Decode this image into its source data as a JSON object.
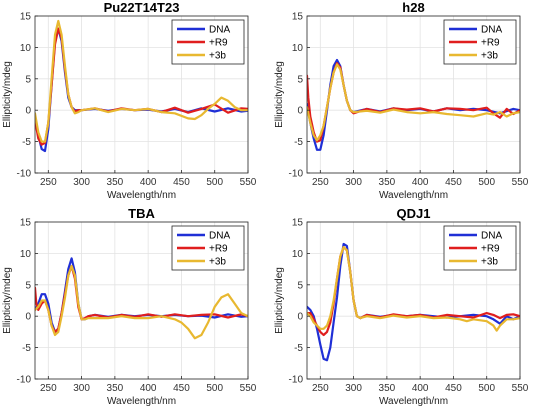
{
  "colors": {
    "DNA": "#1f2fd6",
    "+R9": "#e01e1e",
    "+3b": "#e8b830"
  },
  "chart_data": [
    {
      "type": "line",
      "title": "Pu22T14T23",
      "xlabel": "Wavelength/nm",
      "ylabel": "Ellipticity/mdeg",
      "xlim": [
        230,
        550
      ],
      "ylim": [
        -10,
        15
      ],
      "xticks": [
        250,
        300,
        350,
        400,
        450,
        500,
        550
      ],
      "yticks": [
        -10,
        -5,
        0,
        5,
        10,
        15
      ],
      "grid": true,
      "legend": "top-right",
      "series": [
        {
          "name": "DNA",
          "x": [
            230,
            235,
            240,
            245,
            250,
            255,
            260,
            265,
            270,
            275,
            280,
            285,
            290,
            295,
            300,
            320,
            340,
            360,
            380,
            400,
            420,
            440,
            460,
            480,
            500,
            520,
            540,
            550
          ],
          "y": [
            -1,
            -4,
            -6.2,
            -6.5,
            -3,
            4,
            11,
            13,
            11,
            6,
            2,
            0.5,
            0,
            0,
            0,
            0.2,
            -0.1,
            0.2,
            0,
            0.1,
            -0.2,
            0.2,
            -0.3,
            0.3,
            -0.2,
            0.3,
            -0.2,
            -0.1
          ]
        },
        {
          "name": "+R9",
          "x": [
            230,
            235,
            240,
            245,
            250,
            255,
            260,
            265,
            270,
            275,
            280,
            285,
            290,
            295,
            300,
            320,
            340,
            360,
            380,
            400,
            420,
            440,
            460,
            480,
            500,
            520,
            540,
            550
          ],
          "y": [
            -1.5,
            -4.5,
            -5.5,
            -5.2,
            -2,
            4,
            10.5,
            13,
            11.5,
            6.5,
            2.5,
            0.5,
            -0.2,
            0,
            0,
            0.3,
            -0.2,
            0.3,
            0,
            0.2,
            -0.3,
            0.4,
            -0.4,
            0.2,
            0.9,
            -0.4,
            0.3,
            0.2
          ]
        },
        {
          "name": "+3b",
          "x": [
            230,
            235,
            240,
            245,
            250,
            255,
            260,
            265,
            270,
            275,
            280,
            285,
            290,
            295,
            300,
            320,
            340,
            360,
            380,
            400,
            420,
            440,
            460,
            470,
            480,
            490,
            500,
            510,
            520,
            530,
            540,
            550
          ],
          "y": [
            -0.5,
            -3.5,
            -5,
            -5,
            -2,
            5,
            12,
            14.2,
            12,
            7,
            2.5,
            0.5,
            -0.5,
            -0.3,
            0,
            0.3,
            -0.3,
            0.2,
            0,
            0.2,
            -0.3,
            -0.5,
            -1.3,
            -1.4,
            -0.8,
            0.2,
            1,
            2,
            1.5,
            0.5,
            0,
            0
          ]
        }
      ]
    },
    {
      "type": "line",
      "title": "h28",
      "xlabel": "Wavelength/nm",
      "ylabel": "Ellipticity/mdeg",
      "xlim": [
        230,
        550
      ],
      "ylim": [
        -10,
        15
      ],
      "xticks": [
        250,
        300,
        350,
        400,
        450,
        500,
        550
      ],
      "yticks": [
        -10,
        -5,
        0,
        5,
        10,
        15
      ],
      "grid": true,
      "legend": "top-right",
      "series": [
        {
          "name": "DNA",
          "x": [
            230,
            235,
            240,
            245,
            250,
            255,
            260,
            265,
            270,
            275,
            280,
            285,
            290,
            295,
            300,
            320,
            340,
            360,
            380,
            400,
            420,
            440,
            460,
            480,
            500,
            520,
            540,
            550
          ],
          "y": [
            1,
            -2,
            -4.5,
            -6.3,
            -6.3,
            -4,
            0,
            4,
            7,
            8,
            7,
            4,
            1.5,
            0,
            -0.3,
            0.2,
            -0.2,
            0.3,
            0,
            0.2,
            -0.2,
            0.3,
            0,
            0.2,
            0,
            -0.5,
            0.2,
            0
          ]
        },
        {
          "name": "+R9",
          "x": [
            230,
            232,
            235,
            240,
            245,
            250,
            255,
            260,
            265,
            270,
            275,
            280,
            285,
            290,
            295,
            300,
            320,
            340,
            360,
            380,
            400,
            420,
            440,
            460,
            480,
            500,
            510,
            520,
            530,
            540,
            550
          ],
          "y": [
            5.5,
            2,
            -1,
            -3.5,
            -5,
            -4.8,
            -2.5,
            0.5,
            3.5,
            6,
            7.5,
            6.8,
            4,
            1.5,
            0,
            -0.5,
            0.2,
            -0.3,
            0.3,
            0.1,
            0.3,
            -0.2,
            0.3,
            0.2,
            0,
            0.4,
            -0.5,
            -1.2,
            0.2,
            -0.6,
            0
          ]
        },
        {
          "name": "+3b",
          "x": [
            230,
            235,
            240,
            245,
            250,
            255,
            260,
            265,
            270,
            275,
            280,
            285,
            290,
            295,
            300,
            320,
            340,
            360,
            380,
            400,
            420,
            440,
            460,
            480,
            500,
            510,
            520,
            530,
            540,
            550
          ],
          "y": [
            0.5,
            -2,
            -4,
            -4.8,
            -4,
            -2.5,
            0.5,
            3.5,
            6,
            7.3,
            6.5,
            4,
            1.5,
            0,
            -0.3,
            -0.1,
            -0.4,
            0.1,
            -0.3,
            -0.5,
            -0.3,
            -0.6,
            -0.8,
            -1,
            -0.5,
            -0.7,
            -0.3,
            -1,
            -0.5,
            -0.3
          ]
        }
      ]
    },
    {
      "type": "line",
      "title": "TBA",
      "xlabel": "Wavelength/nm",
      "ylabel": "Ellipticity/mdeg",
      "xlim": [
        230,
        550
      ],
      "ylim": [
        -10,
        15
      ],
      "xticks": [
        250,
        300,
        350,
        400,
        450,
        500,
        550
      ],
      "yticks": [
        -10,
        -5,
        0,
        5,
        10,
        15
      ],
      "grid": true,
      "legend": "top-right",
      "series": [
        {
          "name": "DNA",
          "x": [
            230,
            235,
            240,
            245,
            250,
            255,
            260,
            265,
            270,
            275,
            280,
            285,
            290,
            295,
            300,
            305,
            310,
            320,
            340,
            360,
            380,
            400,
            420,
            440,
            460,
            480,
            500,
            520,
            540,
            550
          ],
          "y": [
            1,
            2,
            3.5,
            3.5,
            2,
            -1,
            -2.5,
            -2,
            0.5,
            4,
            7.5,
            9.2,
            7,
            2,
            -0.5,
            -0.5,
            0,
            0.2,
            -0.1,
            0.2,
            0,
            0.2,
            0,
            0.2,
            0,
            0.1,
            -0.2,
            0.3,
            -0.1,
            0
          ]
        },
        {
          "name": "+R9",
          "x": [
            230,
            232,
            235,
            240,
            245,
            250,
            255,
            260,
            265,
            270,
            275,
            280,
            285,
            290,
            295,
            300,
            305,
            310,
            320,
            340,
            360,
            380,
            400,
            420,
            440,
            460,
            480,
            500,
            520,
            540,
            550
          ],
          "y": [
            4.5,
            2,
            1,
            2,
            2.5,
            1,
            -1.5,
            -2.5,
            -2,
            0.5,
            3.5,
            6.5,
            8,
            6,
            1.5,
            -0.5,
            -0.3,
            0,
            0.2,
            -0.2,
            0.2,
            -0.1,
            0.3,
            -0.1,
            0.3,
            0,
            0.2,
            0.3,
            -0.2,
            0.3,
            0
          ]
        },
        {
          "name": "+3b",
          "x": [
            230,
            235,
            240,
            245,
            250,
            255,
            260,
            265,
            270,
            275,
            280,
            285,
            290,
            295,
            300,
            305,
            310,
            320,
            340,
            360,
            380,
            400,
            420,
            440,
            450,
            460,
            470,
            480,
            490,
            500,
            510,
            520,
            530,
            540,
            550
          ],
          "y": [
            1,
            1.5,
            2.5,
            2.5,
            1,
            -1.5,
            -3,
            -2.5,
            0,
            3,
            6.5,
            8,
            6.5,
            2,
            -0.5,
            -0.5,
            -0.3,
            -0.3,
            -0.3,
            0,
            -0.3,
            -0.3,
            0,
            -0.5,
            -1,
            -2,
            -3.5,
            -3,
            -1,
            1.5,
            3,
            3.5,
            2,
            0.5,
            0
          ]
        }
      ]
    },
    {
      "type": "line",
      "title": "QDJ1",
      "xlabel": "Wavelength/nm",
      "ylabel": "Ellipticity/mdeg",
      "xlim": [
        230,
        550
      ],
      "ylim": [
        -10,
        15
      ],
      "xticks": [
        250,
        300,
        350,
        400,
        450,
        500,
        550
      ],
      "yticks": [
        -10,
        -5,
        0,
        5,
        10,
        15
      ],
      "grid": true,
      "legend": "top-right",
      "series": [
        {
          "name": "DNA",
          "x": [
            230,
            235,
            240,
            245,
            250,
            255,
            260,
            265,
            270,
            275,
            280,
            285,
            290,
            295,
            300,
            305,
            310,
            320,
            340,
            360,
            380,
            400,
            420,
            440,
            460,
            480,
            500,
            510,
            520,
            530,
            540,
            550
          ],
          "y": [
            1.5,
            1,
            0,
            -2,
            -4.5,
            -6.8,
            -7,
            -5,
            -1,
            3,
            8,
            11.5,
            11.2,
            7,
            2.5,
            0,
            -0.3,
            0.2,
            -0.1,
            0.2,
            0,
            0.2,
            0,
            -0.2,
            0,
            0.2,
            0,
            -0.5,
            -1.2,
            0,
            -0.5,
            0
          ]
        },
        {
          "name": "+R9",
          "x": [
            230,
            235,
            240,
            245,
            250,
            255,
            260,
            265,
            270,
            275,
            280,
            285,
            290,
            295,
            300,
            305,
            310,
            320,
            340,
            360,
            380,
            400,
            420,
            440,
            460,
            480,
            500,
            510,
            520,
            530,
            540,
            550
          ],
          "y": [
            0.5,
            0.5,
            -0.5,
            -1.5,
            -2.5,
            -3,
            -2.5,
            -1,
            2,
            6,
            9.5,
            11,
            10.5,
            7,
            2.5,
            0,
            -0.3,
            0.2,
            -0.2,
            0.3,
            0,
            0.2,
            -0.2,
            0.2,
            0,
            -0.2,
            0.5,
            0.2,
            -0.3,
            0.2,
            0.3,
            0
          ]
        },
        {
          "name": "+3b",
          "x": [
            230,
            235,
            240,
            245,
            250,
            255,
            260,
            265,
            270,
            275,
            280,
            285,
            290,
            295,
            300,
            305,
            310,
            320,
            340,
            360,
            380,
            400,
            420,
            440,
            460,
            470,
            480,
            500,
            510,
            515,
            520,
            530,
            540,
            550
          ],
          "y": [
            0.5,
            0,
            -1,
            -1.5,
            -2,
            -2,
            -1.5,
            0,
            2.5,
            6,
            9.5,
            11,
            10.5,
            7,
            2.5,
            0,
            -0.3,
            0,
            -0.3,
            0.1,
            -0.2,
            0,
            -0.3,
            -0.2,
            -0.5,
            -0.8,
            -0.5,
            -0.8,
            -1.5,
            -2.3,
            -1.5,
            -0.5,
            -0.5,
            -0.3
          ]
        }
      ]
    }
  ]
}
